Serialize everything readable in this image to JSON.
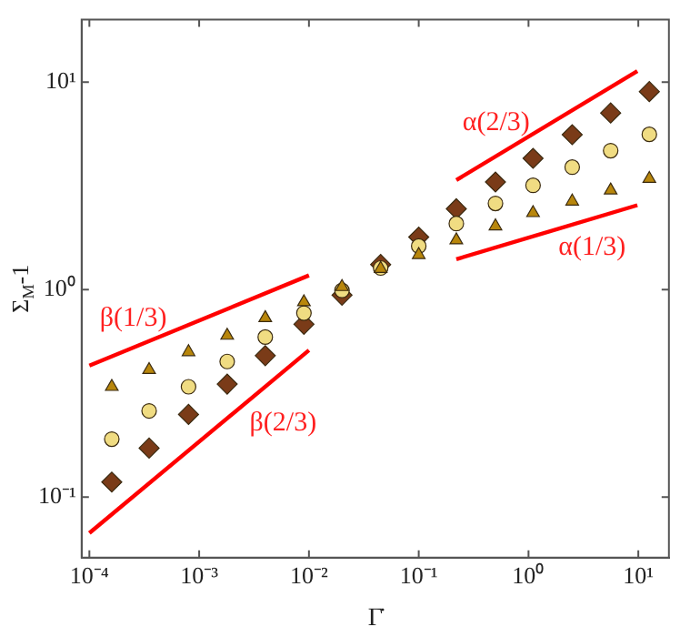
{
  "chart_data": {
    "type": "scatter",
    "xlabel": "Γ̇",
    "ylabel": "Σ$_{M}$-1",
    "log": "xy",
    "grid": false,
    "legend": false,
    "xlim": [
      8.5e-05,
      19
    ],
    "ylim": [
      0.051,
      20
    ],
    "xticks": [
      {
        "value": 0.0001,
        "label": "10⁻⁴"
      },
      {
        "value": 0.001,
        "label": "10⁻³"
      },
      {
        "value": 0.01,
        "label": "10⁻²"
      },
      {
        "value": 0.1,
        "label": "10⁻¹"
      },
      {
        "value": 1,
        "label": "10⁰"
      },
      {
        "value": 10,
        "label": "10¹"
      }
    ],
    "yticks": [
      {
        "value": 0.1,
        "label": "10⁻¹"
      },
      {
        "value": 1,
        "label": "10⁰"
      },
      {
        "value": 10,
        "label": "10¹"
      }
    ],
    "x": [
      0.00016,
      0.00035,
      0.0008,
      0.0018,
      0.004,
      0.009,
      0.02,
      0.045,
      0.1,
      0.22,
      0.5,
      1.1,
      2.5,
      5.6,
      12.6
    ],
    "series": [
      {
        "marker": "triangle",
        "color": "#b8860b",
        "values": [
          0.34,
          0.41,
          0.5,
          0.6,
          0.73,
          0.87,
          1.03,
          1.26,
          1.47,
          1.73,
          2.02,
          2.34,
          2.66,
          3.01,
          3.42
        ]
      },
      {
        "marker": "circle",
        "color": "#f0dc82",
        "values": [
          0.19,
          0.26,
          0.34,
          0.45,
          0.59,
          0.77,
          0.99,
          1.27,
          1.62,
          2.08,
          2.6,
          3.18,
          3.89,
          4.67,
          5.6
        ]
      },
      {
        "marker": "diamond",
        "color": "#7a3b18",
        "values": [
          0.118,
          0.172,
          0.25,
          0.35,
          0.48,
          0.68,
          0.94,
          1.32,
          1.79,
          2.45,
          3.3,
          4.29,
          5.58,
          7.1,
          9.0
        ]
      },
      {
        "type": "line",
        "marker": "none",
        "color": "#ff0000",
        "x": [
          0.0001,
          0.01
        ],
        "values": [
          0.43,
          1.17
        ]
      },
      {
        "type": "line",
        "marker": "none",
        "color": "#ff0000",
        "x": [
          0.0001,
          0.01
        ],
        "values": [
          0.067,
          0.51
        ]
      },
      {
        "type": "line",
        "marker": "none",
        "color": "#ff0000",
        "x": [
          0.22,
          9.8
        ],
        "values": [
          3.37,
          11.3
        ]
      },
      {
        "type": "line",
        "marker": "none",
        "color": "#ff0000",
        "x": [
          0.22,
          9.8
        ],
        "values": [
          1.4,
          2.55
        ]
      }
    ],
    "annotations": [
      "β(1/3)",
      "β(2/3)",
      "α(2/3)",
      "α(1/3)"
    ]
  }
}
